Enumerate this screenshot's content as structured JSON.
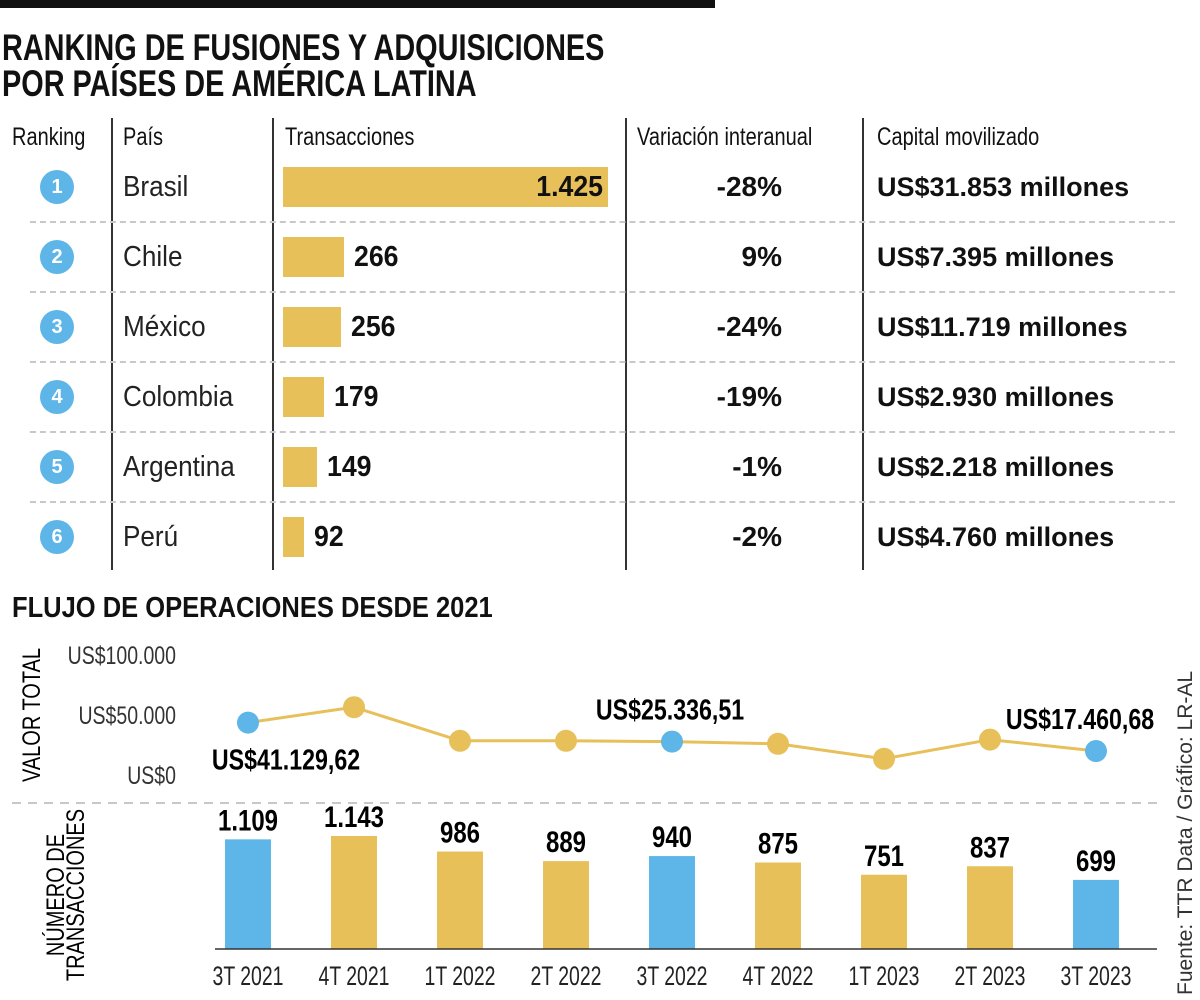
{
  "title": {
    "line1": "RANKING  DE FUSIONES Y ADQUISICIONES",
    "line2": "POR PAÍSES DE AMÉRICA LATINA"
  },
  "table": {
    "headers": {
      "ranking": "Ranking",
      "country": "País",
      "transactions": "Transacciones",
      "variation": "Variación interanual",
      "capital": "Capital movilizado"
    },
    "rows": [
      {
        "rank": "1",
        "country": "Brasil",
        "transactions": 1425,
        "transactions_label": "1.425",
        "variation": "-28%",
        "capital": "US$31.853 millones"
      },
      {
        "rank": "2",
        "country": "Chile",
        "transactions": 266,
        "transactions_label": "266",
        "variation": "9%",
        "capital": "US$7.395 millones"
      },
      {
        "rank": "3",
        "country": "México",
        "transactions": 256,
        "transactions_label": "256",
        "variation": "-24%",
        "capital": "US$11.719 millones"
      },
      {
        "rank": "4",
        "country": "Colombia",
        "transactions": 179,
        "transactions_label": "179",
        "variation": "-19%",
        "capital": "US$2.930 millones"
      },
      {
        "rank": "5",
        "country": "Argentina",
        "transactions": 149,
        "transactions_label": "149",
        "variation": "-1%",
        "capital": "US$2.218 millones"
      },
      {
        "rank": "6",
        "country": "Perú",
        "transactions": 92,
        "transactions_label": "92",
        "variation": "-2%",
        "capital": "US$4.760 millones"
      }
    ]
  },
  "colors": {
    "gold": "#e8c05a",
    "blue": "#5db5e8",
    "text": "#111111"
  },
  "chart_data": {
    "title": "FLUJO DE OPERACIONES DESDE 2021",
    "categories": [
      "3T 2021",
      "4T 2021",
      "1T 2022",
      "2T 2022",
      "3T 2022",
      "4T 2022",
      "1T 2023",
      "2T 2023",
      "3T 2023"
    ],
    "highlight": [
      true,
      false,
      false,
      false,
      true,
      false,
      false,
      false,
      true
    ],
    "line": {
      "type": "line",
      "ylabel": "VALOR TOTAL",
      "ylim": [
        0,
        100000
      ],
      "yticks": [
        0,
        50000,
        100000
      ],
      "ytick_labels": [
        "US$0",
        "US$50.000",
        "US$100.000"
      ],
      "values": [
        41129.62,
        54000,
        26000,
        26000,
        25336.51,
        23500,
        11000,
        27000,
        17460.68
      ],
      "point_labels": [
        "US$41.129,62",
        "",
        "",
        "",
        "US$25.336,51",
        "",
        "",
        "",
        "US$17.460,68"
      ]
    },
    "bars": {
      "type": "bar",
      "ylabel_line1": "NÚMERO DE",
      "ylabel_line2": "TRANSACCIONES",
      "values": [
        1109,
        1143,
        986,
        889,
        940,
        875,
        751,
        837,
        699
      ],
      "labels": [
        "1.109",
        "1.143",
        "986",
        "889",
        "940",
        "875",
        "751",
        "837",
        "699"
      ]
    },
    "grid": false
  },
  "source": "Fuente: TTR Data / Gráfico: LR-AL"
}
